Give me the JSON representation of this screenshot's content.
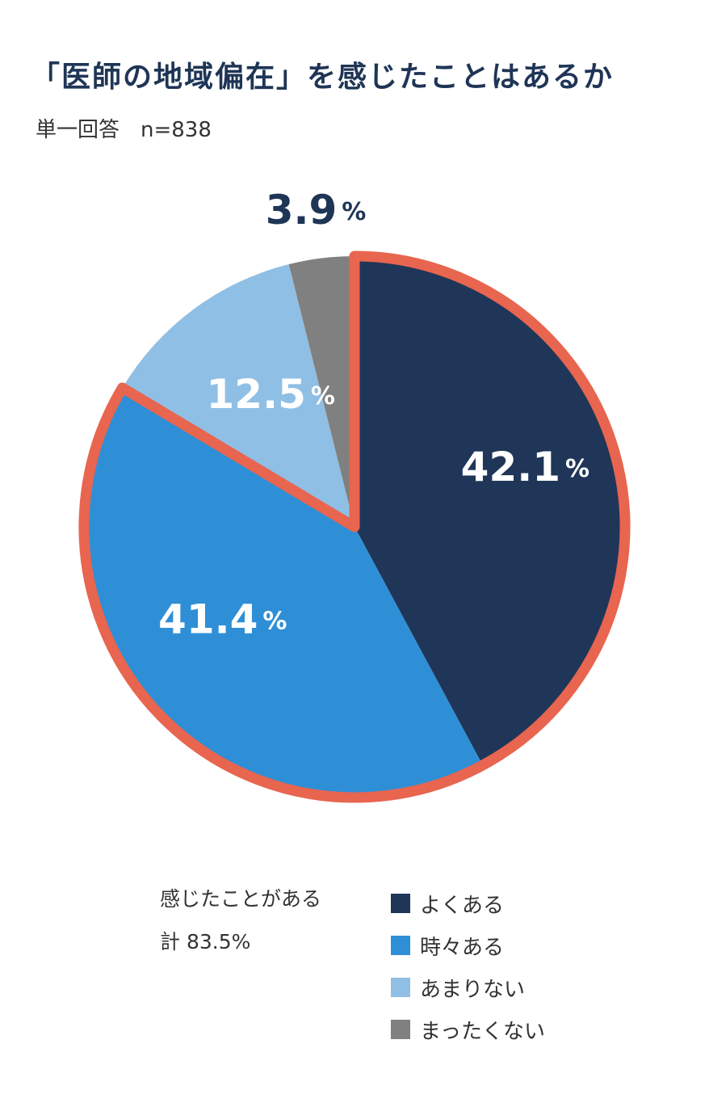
{
  "header": {
    "title": "「医師の地域偏在」を感じたことはあるか",
    "subtitle": "単一回答　n=838"
  },
  "note": {
    "line1": "感じたことがある",
    "line2": "計 83.5%"
  },
  "chart_data": {
    "type": "pie",
    "categories": [
      "よくある",
      "時々ある",
      "あまりない",
      "まったくない"
    ],
    "values": [
      42.1,
      41.4,
      12.5,
      3.9
    ],
    "labels": [
      {
        "value": "42.1",
        "unit": "%"
      },
      {
        "value": "41.4",
        "unit": "%"
      },
      {
        "value": "12.5",
        "unit": "%"
      },
      {
        "value": "3.9",
        "unit": "%"
      }
    ],
    "colors": [
      "#1f3659",
      "#2f8fd6",
      "#8fbfe5",
      "#808080"
    ],
    "highlight": {
      "categories": [
        "よくある",
        "時々ある"
      ],
      "color": "#e8654f"
    },
    "legend": {
      "position": "bottom-right"
    }
  }
}
